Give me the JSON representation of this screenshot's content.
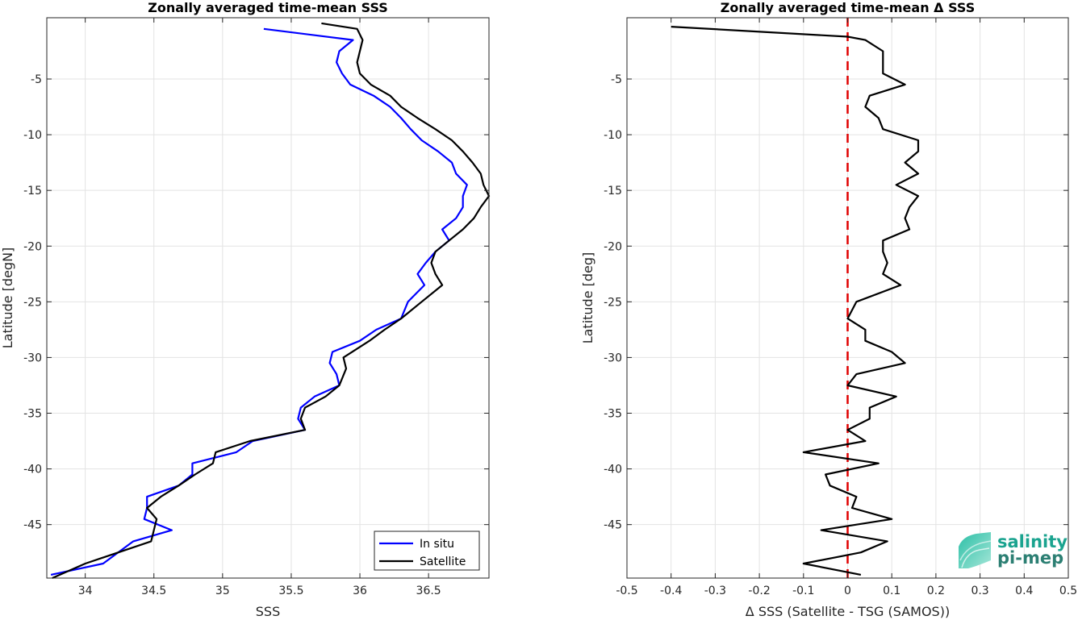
{
  "chart_data": [
    {
      "type": "line",
      "title": "Zonally averaged time-mean SSS",
      "xlabel": "SSS",
      "ylabel": "Latitude [degN]",
      "xlim": [
        33.72,
        36.94
      ],
      "ylim": [
        -49.8,
        0.5
      ],
      "xticks": [
        "34",
        "34.5",
        "35",
        "35.5",
        "36",
        "36.5"
      ],
      "xtick_values": [
        34,
        34.5,
        35,
        35.5,
        36,
        36.5
      ],
      "yticks": [
        "-5",
        "-10",
        "-15",
        "-20",
        "-25",
        "-30",
        "-35",
        "-40",
        "-45"
      ],
      "ytick_values": [
        -5,
        -10,
        -15,
        -20,
        -25,
        -30,
        -35,
        -40,
        -45
      ],
      "grid": true,
      "legend_position": "bottom-right",
      "series": [
        {
          "name": "In situ",
          "color": "#0000ff",
          "points": [
            [
              35.3,
              -0.5
            ],
            [
              35.95,
              -1.5
            ],
            [
              35.85,
              -2.5
            ],
            [
              35.83,
              -3.5
            ],
            [
              35.87,
              -4.5
            ],
            [
              35.93,
              -5.5
            ],
            [
              36.1,
              -6.5
            ],
            [
              36.22,
              -7.5
            ],
            [
              36.3,
              -8.5
            ],
            [
              36.37,
              -9.5
            ],
            [
              36.45,
              -10.5
            ],
            [
              36.57,
              -11.5
            ],
            [
              36.67,
              -12.5
            ],
            [
              36.7,
              -13.5
            ],
            [
              36.78,
              -14.5
            ],
            [
              36.75,
              -15.5
            ],
            [
              36.75,
              -16.5
            ],
            [
              36.7,
              -17.5
            ],
            [
              36.6,
              -18.5
            ],
            [
              36.65,
              -19.5
            ],
            [
              36.55,
              -20.5
            ],
            [
              36.48,
              -21.5
            ],
            [
              36.42,
              -22.5
            ],
            [
              36.47,
              -23.5
            ],
            [
              36.35,
              -25.0
            ],
            [
              36.3,
              -26.5
            ],
            [
              36.12,
              -27.5
            ],
            [
              36.0,
              -28.5
            ],
            [
              35.8,
              -29.5
            ],
            [
              35.78,
              -30.5
            ],
            [
              35.83,
              -31.5
            ],
            [
              35.85,
              -32.5
            ],
            [
              35.67,
              -33.5
            ],
            [
              35.57,
              -34.5
            ],
            [
              35.55,
              -35.5
            ],
            [
              35.6,
              -36.5
            ],
            [
              35.22,
              -37.5
            ],
            [
              35.1,
              -38.5
            ],
            [
              34.78,
              -39.5
            ],
            [
              34.78,
              -40.5
            ],
            [
              34.68,
              -41.5
            ],
            [
              34.45,
              -42.5
            ],
            [
              34.45,
              -43.5
            ],
            [
              34.43,
              -44.5
            ],
            [
              34.63,
              -45.5
            ],
            [
              34.35,
              -46.5
            ],
            [
              34.13,
              -48.5
            ],
            [
              33.75,
              -49.5
            ]
          ]
        },
        {
          "name": "Satellite",
          "color": "#000000",
          "points": [
            [
              35.72,
              0.0
            ],
            [
              35.98,
              -0.5
            ],
            [
              36.02,
              -1.5
            ],
            [
              36.0,
              -2.5
            ],
            [
              35.98,
              -3.5
            ],
            [
              36.0,
              -4.5
            ],
            [
              36.08,
              -5.5
            ],
            [
              36.22,
              -6.5
            ],
            [
              36.3,
              -7.5
            ],
            [
              36.42,
              -8.5
            ],
            [
              36.55,
              -9.5
            ],
            [
              36.67,
              -10.5
            ],
            [
              36.75,
              -11.5
            ],
            [
              36.82,
              -12.5
            ],
            [
              36.88,
              -13.5
            ],
            [
              36.9,
              -14.5
            ],
            [
              36.94,
              -15.5
            ],
            [
              36.88,
              -16.5
            ],
            [
              36.83,
              -17.5
            ],
            [
              36.75,
              -18.5
            ],
            [
              36.65,
              -19.5
            ],
            [
              36.55,
              -20.5
            ],
            [
              36.52,
              -21.5
            ],
            [
              36.55,
              -22.5
            ],
            [
              36.6,
              -23.5
            ],
            [
              36.45,
              -25.0
            ],
            [
              36.3,
              -26.5
            ],
            [
              36.18,
              -27.5
            ],
            [
              36.07,
              -28.5
            ],
            [
              35.88,
              -30.0
            ],
            [
              35.9,
              -31.0
            ],
            [
              35.85,
              -32.5
            ],
            [
              35.75,
              -33.5
            ],
            [
              35.6,
              -34.5
            ],
            [
              35.57,
              -35.5
            ],
            [
              35.6,
              -36.5
            ],
            [
              35.2,
              -37.5
            ],
            [
              34.95,
              -38.5
            ],
            [
              34.93,
              -39.5
            ],
            [
              34.8,
              -40.5
            ],
            [
              34.68,
              -41.5
            ],
            [
              34.55,
              -42.5
            ],
            [
              34.45,
              -43.5
            ],
            [
              34.52,
              -44.5
            ],
            [
              34.5,
              -45.5
            ],
            [
              34.48,
              -46.5
            ],
            [
              34.0,
              -48.5
            ],
            [
              33.76,
              -49.8
            ]
          ]
        }
      ]
    },
    {
      "type": "line",
      "title": "Zonally averaged time-mean Δ SSS",
      "xlabel": "Δ SSS (Satellite - TSG (SAMOS))",
      "ylabel": "Latitude [deg]",
      "xlim": [
        -0.5,
        0.5
      ],
      "ylim": [
        -49.8,
        0.5
      ],
      "xticks": [
        "-0.5",
        "-0.4",
        "-0.3",
        "-0.2",
        "-0.1",
        "0",
        "0.1",
        "0.2",
        "0.3",
        "0.4",
        "0.5"
      ],
      "xtick_values": [
        -0.5,
        -0.4,
        -0.3,
        -0.2,
        -0.1,
        0,
        0.1,
        0.2,
        0.3,
        0.4,
        0.5
      ],
      "yticks": [
        "-5",
        "-10",
        "-15",
        "-20",
        "-25",
        "-30",
        "-35",
        "-40",
        "-45"
      ],
      "ytick_values": [
        -5,
        -10,
        -15,
        -20,
        -25,
        -30,
        -35,
        -40,
        -45
      ],
      "grid": true,
      "zero_line_color": "#e00000",
      "series": [
        {
          "color": "#000000",
          "points": [
            [
              -0.4,
              -0.3
            ],
            [
              0.0,
              -1.2
            ],
            [
              0.04,
              -1.5
            ],
            [
              0.08,
              -2.5
            ],
            [
              0.08,
              -3.5
            ],
            [
              0.08,
              -4.5
            ],
            [
              0.13,
              -5.5
            ],
            [
              0.05,
              -6.5
            ],
            [
              0.04,
              -7.5
            ],
            [
              0.07,
              -8.5
            ],
            [
              0.08,
              -9.5
            ],
            [
              0.16,
              -10.5
            ],
            [
              0.16,
              -11.5
            ],
            [
              0.13,
              -12.5
            ],
            [
              0.16,
              -13.5
            ],
            [
              0.11,
              -14.5
            ],
            [
              0.16,
              -15.5
            ],
            [
              0.14,
              -16.5
            ],
            [
              0.13,
              -17.5
            ],
            [
              0.14,
              -18.5
            ],
            [
              0.08,
              -19.5
            ],
            [
              0.08,
              -20.5
            ],
            [
              0.09,
              -21.5
            ],
            [
              0.08,
              -22.5
            ],
            [
              0.12,
              -23.5
            ],
            [
              0.02,
              -25.0
            ],
            [
              0.0,
              -26.5
            ],
            [
              0.04,
              -27.5
            ],
            [
              0.04,
              -28.5
            ],
            [
              0.1,
              -29.5
            ],
            [
              0.13,
              -30.5
            ],
            [
              0.02,
              -31.5
            ],
            [
              0.0,
              -32.5
            ],
            [
              0.11,
              -33.5
            ],
            [
              0.05,
              -34.5
            ],
            [
              0.05,
              -35.5
            ],
            [
              0.0,
              -36.5
            ],
            [
              0.04,
              -37.5
            ],
            [
              -0.1,
              -38.5
            ],
            [
              0.07,
              -39.5
            ],
            [
              -0.05,
              -40.5
            ],
            [
              -0.04,
              -41.5
            ],
            [
              0.02,
              -42.5
            ],
            [
              0.01,
              -43.5
            ],
            [
              0.1,
              -44.5
            ],
            [
              -0.06,
              -45.5
            ],
            [
              0.09,
              -46.5
            ],
            [
              0.03,
              -47.5
            ],
            [
              -0.1,
              -48.5
            ],
            [
              0.03,
              -49.5
            ]
          ]
        }
      ]
    }
  ],
  "logo": {
    "line1": "salinity",
    "line2": "pi-mep"
  }
}
